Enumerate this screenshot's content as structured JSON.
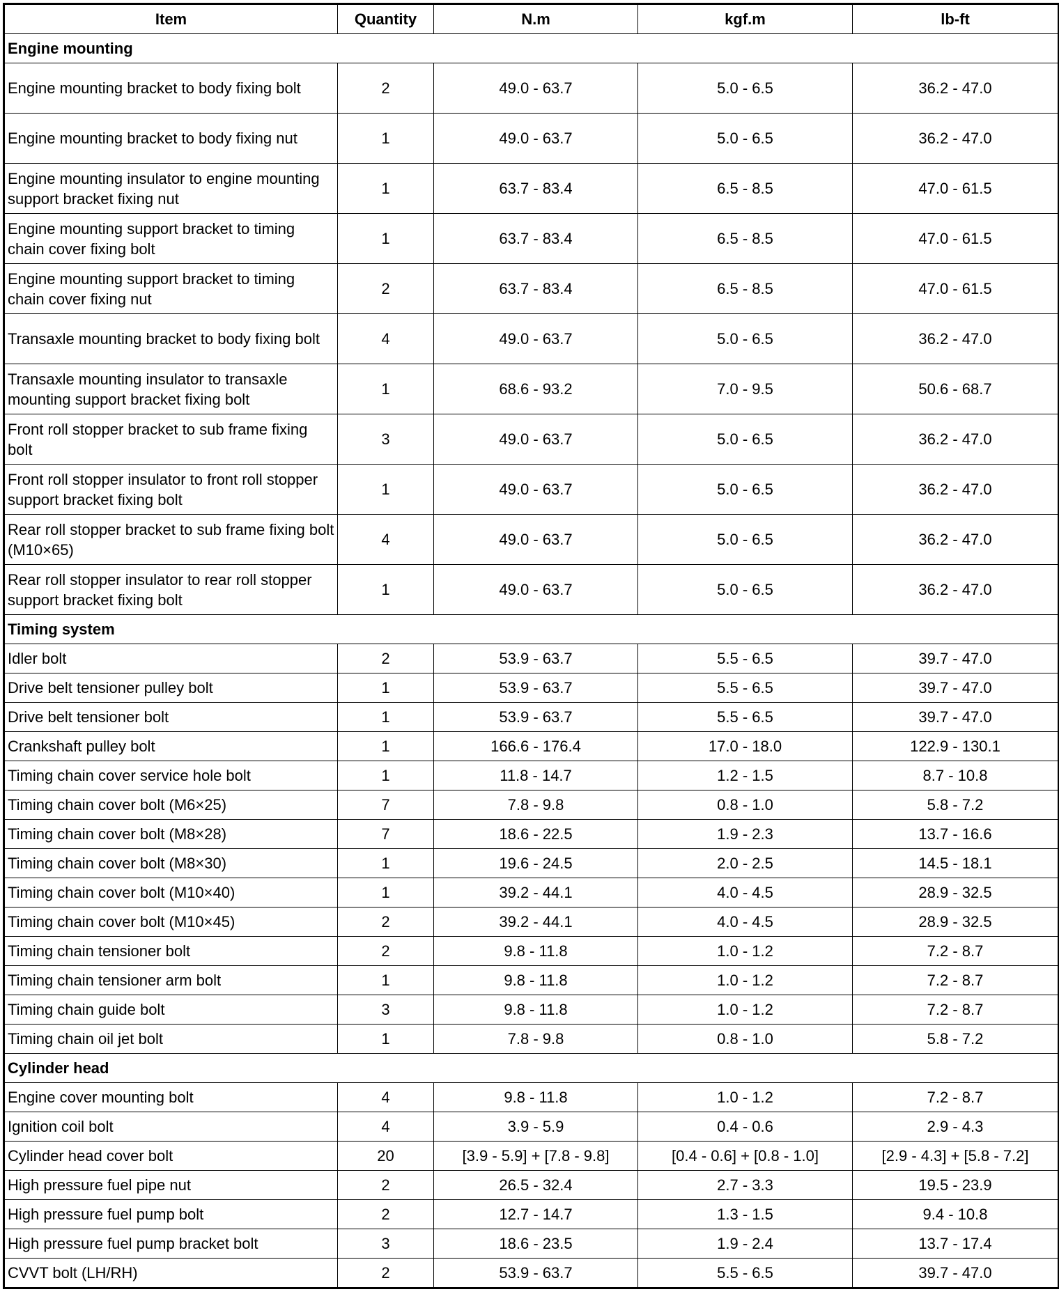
{
  "headers": [
    "Item",
    "Quantity",
    "N.m",
    "kgf.m",
    "lb-ft"
  ],
  "sections": [
    {
      "title": "Engine mounting",
      "rows": [
        [
          "Engine mounting bracket to body fixing bolt",
          "2",
          "49.0 - 63.7",
          "5.0 - 6.5",
          "36.2 - 47.0"
        ],
        [
          "Engine mounting bracket to body fixing nut",
          "1",
          "49.0 - 63.7",
          "5.0 - 6.5",
          "36.2 - 47.0"
        ],
        [
          "Engine mounting insulator to engine mounting support bracket fixing nut",
          "1",
          "63.7 - 83.4",
          "6.5 - 8.5",
          "47.0 - 61.5"
        ],
        [
          "Engine mounting support bracket to timing chain cover fixing bolt",
          "1",
          "63.7 - 83.4",
          "6.5 - 8.5",
          "47.0 - 61.5"
        ],
        [
          "Engine mounting support bracket to timing chain cover fixing nut",
          "2",
          "63.7 - 83.4",
          "6.5 - 8.5",
          "47.0 - 61.5"
        ],
        [
          "Transaxle mounting bracket to body fixing bolt",
          "4",
          "49.0 - 63.7",
          "5.0 - 6.5",
          "36.2 - 47.0"
        ],
        [
          "Transaxle mounting insulator to transaxle mounting support bracket fixing bolt",
          "1",
          "68.6 - 93.2",
          "7.0 - 9.5",
          "50.6 - 68.7"
        ],
        [
          "Front roll stopper bracket to sub frame fixing bolt",
          "3",
          "49.0 - 63.7",
          "5.0 - 6.5",
          "36.2 - 47.0"
        ],
        [
          "Front roll stopper insulator to front roll stopper support bracket fixing bolt",
          "1",
          "49.0 - 63.7",
          "5.0 - 6.5",
          "36.2 - 47.0"
        ],
        [
          "Rear roll stopper bracket to sub frame fixing bolt (M10×65)",
          "4",
          "49.0 - 63.7",
          "5.0 - 6.5",
          "36.2 - 47.0"
        ],
        [
          "Rear roll stopper insulator to rear roll stopper support bracket fixing bolt",
          "1",
          "49.0 - 63.7",
          "5.0 - 6.5",
          "36.2 - 47.0"
        ]
      ]
    },
    {
      "title": "Timing system",
      "rows": [
        [
          "Idler bolt",
          "2",
          "53.9 - 63.7",
          "5.5 - 6.5",
          "39.7 - 47.0"
        ],
        [
          "Drive belt tensioner pulley bolt",
          "1",
          "53.9 - 63.7",
          "5.5 - 6.5",
          "39.7 - 47.0"
        ],
        [
          "Drive belt tensioner bolt",
          "1",
          "53.9 - 63.7",
          "5.5 - 6.5",
          "39.7 - 47.0"
        ],
        [
          "Crankshaft pulley bolt",
          "1",
          "166.6 - 176.4",
          "17.0 - 18.0",
          "122.9 - 130.1"
        ],
        [
          "Timing chain cover service hole bolt",
          "1",
          "11.8 - 14.7",
          "1.2 - 1.5",
          "8.7 - 10.8"
        ],
        [
          "Timing chain cover bolt (M6×25)",
          "7",
          "7.8 - 9.8",
          "0.8 - 1.0",
          "5.8 - 7.2"
        ],
        [
          "Timing chain cover bolt (M8×28)",
          "7",
          "18.6 - 22.5",
          "1.9 - 2.3",
          "13.7 - 16.6"
        ],
        [
          "Timing chain cover bolt (M8×30)",
          "1",
          "19.6 - 24.5",
          "2.0 - 2.5",
          "14.5 - 18.1"
        ],
        [
          "Timing chain cover bolt (M10×40)",
          "1",
          "39.2 - 44.1",
          "4.0 - 4.5",
          "28.9 - 32.5"
        ],
        [
          "Timing chain cover bolt (M10×45)",
          "2",
          "39.2 - 44.1",
          "4.0 - 4.5",
          "28.9 - 32.5"
        ],
        [
          "Timing chain tensioner bolt",
          "2",
          "9.8 - 11.8",
          "1.0 - 1.2",
          "7.2 - 8.7"
        ],
        [
          "Timing chain tensioner arm bolt",
          "1",
          "9.8 - 11.8",
          "1.0 - 1.2",
          "7.2 - 8.7"
        ],
        [
          "Timing chain guide bolt",
          "3",
          "9.8 - 11.8",
          "1.0 - 1.2",
          "7.2 - 8.7"
        ],
        [
          "Timing chain oil jet bolt",
          "1",
          "7.8 - 9.8",
          "0.8 - 1.0",
          "5.8 - 7.2"
        ]
      ]
    },
    {
      "title": "Cylinder head",
      "rows": [
        [
          "Engine cover mounting bolt",
          "4",
          "9.8 - 11.8",
          "1.0 - 1.2",
          "7.2 - 8.7"
        ],
        [
          "Ignition coil bolt",
          "4",
          "3.9 - 5.9",
          "0.4 - 0.6",
          "2.9 - 4.3"
        ],
        [
          "Cylinder head cover bolt",
          "20",
          "[3.9 - 5.9] + [7.8 - 9.8]",
          "[0.4 - 0.6] + [0.8 - 1.0]",
          "[2.9 - 4.3] + [5.8 - 7.2]"
        ],
        [
          "High pressure fuel pipe nut",
          "2",
          "26.5 - 32.4",
          "2.7 - 3.3",
          "19.5 - 23.9"
        ],
        [
          "High pressure fuel pump bolt",
          "2",
          "12.7 - 14.7",
          "1.3 - 1.5",
          "9.4 - 10.8"
        ],
        [
          "High pressure fuel pump bracket bolt",
          "3",
          "18.6 - 23.5",
          "1.9 - 2.4",
          "13.7 - 17.4"
        ],
        [
          "CVVT bolt (LH/RH)",
          "2",
          "53.9 - 63.7",
          "5.5 - 6.5",
          "39.7 - 47.0"
        ]
      ]
    }
  ]
}
